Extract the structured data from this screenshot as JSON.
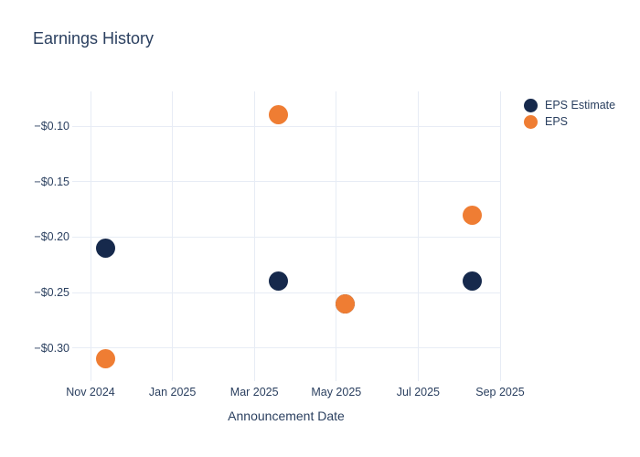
{
  "chart_data": {
    "type": "scatter",
    "title": "Earnings History",
    "xlabel": "Announcement Date",
    "ylabel": "",
    "grid": true,
    "legend_position": "top-right-outside",
    "x_axis": {
      "tick_labels": [
        "Nov 2024",
        "Jan 2025",
        "Mar 2025",
        "May 2025",
        "Jul 2025",
        "Sep 2025"
      ],
      "tick_months_from_nov_2024": [
        0,
        2,
        4,
        6,
        8,
        10
      ]
    },
    "y_axis": {
      "tick_labels": [
        "−$0.10",
        "−$0.15",
        "−$0.20",
        "−$0.25",
        "−$0.30"
      ],
      "tick_values": [
        -0.1,
        -0.15,
        -0.2,
        -0.25,
        -0.3
      ],
      "ylim": [
        -0.33,
        -0.07
      ]
    },
    "series": [
      {
        "name": "EPS Estimate",
        "color": "#16294c",
        "points": [
          {
            "date": "2024-11-12",
            "x_months_from_nov_2024": 0.37,
            "value": -0.21
          },
          {
            "date": "2025-03-19",
            "x_months_from_nov_2024": 4.58,
            "value": -0.24
          },
          {
            "date": "2025-05-08",
            "x_months_from_nov_2024": 6.21,
            "value": -0.26
          },
          {
            "date": "2025-08-11",
            "x_months_from_nov_2024": 9.33,
            "value": -0.24
          }
        ]
      },
      {
        "name": "EPS",
        "color": "#ef7d33",
        "points": [
          {
            "date": "2024-11-12",
            "x_months_from_nov_2024": 0.37,
            "value": -0.31
          },
          {
            "date": "2025-03-19",
            "x_months_from_nov_2024": 4.58,
            "value": -0.09
          },
          {
            "date": "2025-05-08",
            "x_months_from_nov_2024": 6.21,
            "value": -0.26
          },
          {
            "date": "2025-08-11",
            "x_months_from_nov_2024": 9.33,
            "value": -0.18
          }
        ]
      }
    ]
  },
  "legend": {
    "items": [
      {
        "label": "EPS Estimate",
        "color": "#16294c"
      },
      {
        "label": "EPS",
        "color": "#ef7d33"
      }
    ]
  },
  "style": {
    "text_color": "#2a3f5f",
    "grid_color": "#e7ecf5",
    "background": "#ffffff"
  }
}
